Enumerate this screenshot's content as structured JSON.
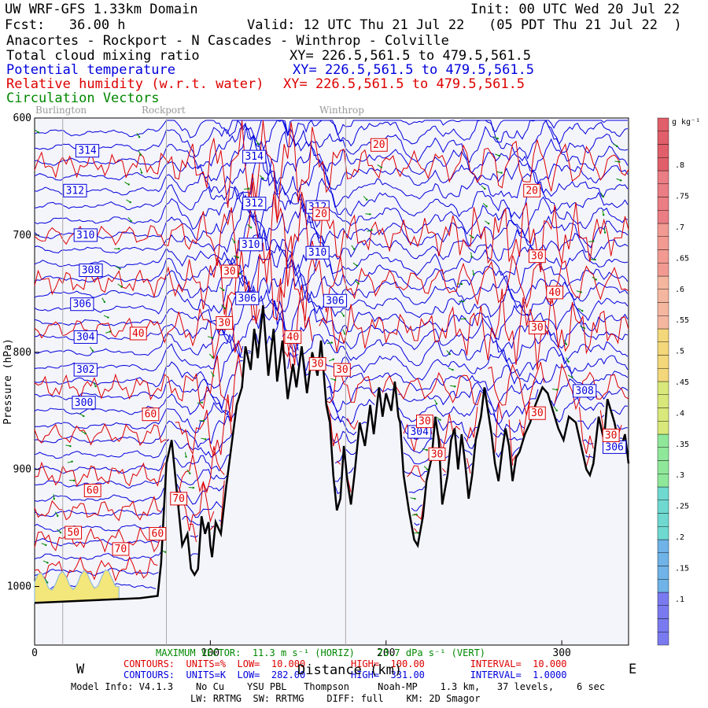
{
  "header": {
    "line1_left": "UW WRF-GFS 1.33km Domain",
    "line1_right": "Init: 00 UTC Wed 20 Jul 22",
    "line2_left": "Fcst:   36.00 h",
    "line2_right": "Valid: 12 UTC Thu 21 Jul 22   (05 PDT Thu 21 Jul 22  )",
    "route": "Anacortes - Rockport - N Cascades - Winthrop - Colville",
    "fields": [
      {
        "name": "Total cloud mixing ratio",
        "xy": "XY= 226.5,561.5 to 479.5,561.5",
        "color": "#000000"
      },
      {
        "name": "Potential temperature",
        "xy": "XY= 226.5,561.5 to 479.5,561.5",
        "color": "#0000dd"
      },
      {
        "name": "Relative humidity (w.r.t. water)",
        "xy": "XY= 226.5,561.5 to 479.5,561.5",
        "color": "#dd0000"
      },
      {
        "name": "Circulation Vectors",
        "xy": "",
        "color": "#008800"
      }
    ]
  },
  "colors": {
    "theta": "#0000dd",
    "rh": "#dd0000",
    "vector": "#008800",
    "terrain": "#000000",
    "plot_bg": "#f4f4fb"
  },
  "footer": {
    "max_vector": "MAXIMUM VECTOR:  11.3 m s⁻¹ (HORIZ)    73.7 dPa s⁻¹ (VERT)",
    "contours_rh": "CONTOURS:  UNITS=%  LOW=  10.000        HIGH=  100.00        INTERVAL=  10.000",
    "contours_theta": "CONTOURS:  UNITS=K  LOW=  282.00        HIGH=  331.00        INTERVAL=  1.0000",
    "model_info": "Model Info: V4.1.3    No Cu    YSU PBL   Thompson     Noah-MP    1.3 km,   37 levels,    6 sec",
    "model_info2": "LW: RRTMG  SW: RRTMG    DIFF: full    KM: 2D Smagor",
    "west": "W",
    "east": "E"
  },
  "chart_data": {
    "type": "cross-section",
    "xlabel": "Distance (km)",
    "ylabel": "Pressure (hPa)",
    "xlim": [
      0,
      338
    ],
    "ylim_hpa": [
      1050,
      600
    ],
    "x_ticks": [
      0,
      100,
      200,
      300
    ],
    "y_ticks": [
      600,
      700,
      800,
      900,
      1000
    ],
    "locations": [
      {
        "name": "Burlington",
        "x_km": 16
      },
      {
        "name": "Rockport",
        "x_km": 75
      },
      {
        "name": "Winthrop",
        "x_km": 177
      }
    ],
    "terrain_profile": [
      [
        0,
        1014
      ],
      [
        15,
        1013
      ],
      [
        30,
        1012
      ],
      [
        45,
        1011
      ],
      [
        60,
        1010
      ],
      [
        70,
        1008
      ],
      [
        72,
        980
      ],
      [
        75,
        895
      ],
      [
        78,
        875
      ],
      [
        81,
        920
      ],
      [
        84,
        965
      ],
      [
        87,
        955
      ],
      [
        89,
        985
      ],
      [
        91,
        990
      ],
      [
        93,
        985
      ],
      [
        95,
        940
      ],
      [
        97,
        955
      ],
      [
        99,
        945
      ],
      [
        100,
        965
      ],
      [
        101,
        975
      ],
      [
        103,
        945
      ],
      [
        106,
        955
      ],
      [
        109,
        915
      ],
      [
        112,
        880
      ],
      [
        115,
        845
      ],
      [
        118,
        830
      ],
      [
        120,
        795
      ],
      [
        123,
        815
      ],
      [
        125,
        780
      ],
      [
        127,
        805
      ],
      [
        130,
        760
      ],
      [
        133,
        820
      ],
      [
        136,
        780
      ],
      [
        138,
        825
      ],
      [
        141,
        790
      ],
      [
        144,
        840
      ],
      [
        147,
        810
      ],
      [
        149,
        830
      ],
      [
        152,
        795
      ],
      [
        155,
        835
      ],
      [
        158,
        800
      ],
      [
        161,
        820
      ],
      [
        163,
        790
      ],
      [
        166,
        845
      ],
      [
        168,
        860
      ],
      [
        170,
        905
      ],
      [
        172,
        935
      ],
      [
        174,
        925
      ],
      [
        176,
        880
      ],
      [
        178,
        910
      ],
      [
        180,
        930
      ],
      [
        182,
        905
      ],
      [
        185,
        860
      ],
      [
        188,
        880
      ],
      [
        191,
        845
      ],
      [
        193,
        870
      ],
      [
        196,
        830
      ],
      [
        198,
        855
      ],
      [
        200,
        835
      ],
      [
        203,
        850
      ],
      [
        205,
        825
      ],
      [
        207,
        855
      ],
      [
        208,
        860
      ],
      [
        210,
        905
      ],
      [
        213,
        935
      ],
      [
        216,
        960
      ],
      [
        218,
        965
      ],
      [
        221,
        940
      ],
      [
        223,
        910
      ],
      [
        226,
        890
      ],
      [
        228,
        855
      ],
      [
        230,
        875
      ],
      [
        232,
        930
      ],
      [
        235,
        905
      ],
      [
        237,
        875
      ],
      [
        239,
        865
      ],
      [
        241,
        900
      ],
      [
        243,
        870
      ],
      [
        245,
        895
      ],
      [
        247,
        925
      ],
      [
        249,
        905
      ],
      [
        251,
        875
      ],
      [
        254,
        855
      ],
      [
        256,
        830
      ],
      [
        258,
        850
      ],
      [
        260,
        870
      ],
      [
        262,
        895
      ],
      [
        264,
        910
      ],
      [
        266,
        885
      ],
      [
        268,
        865
      ],
      [
        270,
        880
      ],
      [
        272,
        910
      ],
      [
        274,
        890
      ],
      [
        276,
        885
      ],
      [
        279,
        870
      ],
      [
        282,
        860
      ],
      [
        285,
        845
      ],
      [
        289,
        830
      ],
      [
        292,
        835
      ],
      [
        295,
        850
      ],
      [
        298,
        865
      ],
      [
        301,
        875
      ],
      [
        304,
        855
      ],
      [
        308,
        860
      ],
      [
        311,
        880
      ],
      [
        314,
        900
      ],
      [
        316,
        905
      ],
      [
        318,
        895
      ],
      [
        321,
        855
      ],
      [
        324,
        875
      ],
      [
        326,
        840
      ],
      [
        330,
        860
      ],
      [
        332,
        875
      ],
      [
        334,
        880
      ],
      [
        336,
        870
      ],
      [
        338,
        895
      ]
    ],
    "theta_contours": {
      "units": "K",
      "low": 282.0,
      "high": 331.0,
      "interval": 1.0,
      "labels": [
        {
          "value": "314",
          "x_km": 30,
          "p_hpa": 628
        },
        {
          "value": "314",
          "x_km": 125,
          "p_hpa": 633
        },
        {
          "value": "312",
          "x_km": 23,
          "p_hpa": 662
        },
        {
          "value": "312",
          "x_km": 125,
          "p_hpa": 673
        },
        {
          "value": "312",
          "x_km": 161,
          "p_hpa": 676
        },
        {
          "value": "310",
          "x_km": 29,
          "p_hpa": 700
        },
        {
          "value": "310",
          "x_km": 123,
          "p_hpa": 708
        },
        {
          "value": "310",
          "x_km": 161,
          "p_hpa": 715
        },
        {
          "value": "308",
          "x_km": 32,
          "p_hpa": 730
        },
        {
          "value": "306",
          "x_km": 27,
          "p_hpa": 759
        },
        {
          "value": "306",
          "x_km": 121,
          "p_hpa": 754
        },
        {
          "value": "306",
          "x_km": 171,
          "p_hpa": 756
        },
        {
          "value": "304",
          "x_km": 29,
          "p_hpa": 787
        },
        {
          "value": "302",
          "x_km": 29,
          "p_hpa": 815
        },
        {
          "value": "300",
          "x_km": 28,
          "p_hpa": 843
        },
        {
          "value": "308",
          "x_km": 313,
          "p_hpa": 833
        },
        {
          "value": "304",
          "x_km": 219,
          "p_hpa": 868
        },
        {
          "value": "306",
          "x_km": 330,
          "p_hpa": 881
        }
      ]
    },
    "rh_contours": {
      "units": "%",
      "low": 10.0,
      "high": 100.0,
      "interval": 10.0,
      "labels": [
        {
          "value": "20",
          "x_km": 196,
          "p_hpa": 623
        },
        {
          "value": "20",
          "x_km": 283,
          "p_hpa": 662
        },
        {
          "value": "20",
          "x_km": 163,
          "p_hpa": 682
        },
        {
          "value": "30",
          "x_km": 111,
          "p_hpa": 731
        },
        {
          "value": "30",
          "x_km": 286,
          "p_hpa": 718
        },
        {
          "value": "30",
          "x_km": 108,
          "p_hpa": 775
        },
        {
          "value": "30",
          "x_km": 286,
          "p_hpa": 779
        },
        {
          "value": "30",
          "x_km": 161,
          "p_hpa": 810
        },
        {
          "value": "30",
          "x_km": 175,
          "p_hpa": 815
        },
        {
          "value": "30",
          "x_km": 222,
          "p_hpa": 859
        },
        {
          "value": "30",
          "x_km": 286,
          "p_hpa": 852
        },
        {
          "value": "30",
          "x_km": 229,
          "p_hpa": 887
        },
        {
          "value": "30",
          "x_km": 328,
          "p_hpa": 871
        },
        {
          "value": "40",
          "x_km": 59,
          "p_hpa": 784
        },
        {
          "value": "40",
          "x_km": 296,
          "p_hpa": 749
        },
        {
          "value": "40",
          "x_km": 147,
          "p_hpa": 787
        },
        {
          "value": "60",
          "x_km": 66,
          "p_hpa": 853
        },
        {
          "value": "60",
          "x_km": 33,
          "p_hpa": 918
        },
        {
          "value": "60",
          "x_km": 70,
          "p_hpa": 955
        },
        {
          "value": "70",
          "x_km": 82,
          "p_hpa": 925
        },
        {
          "value": "70",
          "x_km": 49,
          "p_hpa": 968
        },
        {
          "value": "50",
          "x_km": 22,
          "p_hpa": 954
        }
      ]
    },
    "cloud_mixing_ratio_colorbar": {
      "units": "g kg⁻¹",
      "ticks": [
        ".1",
        ".15",
        ".2",
        ".25",
        ".3",
        ".35",
        ".4",
        ".45",
        ".5",
        ".55",
        ".6",
        ".65",
        ".7",
        ".75",
        ".8"
      ]
    }
  }
}
